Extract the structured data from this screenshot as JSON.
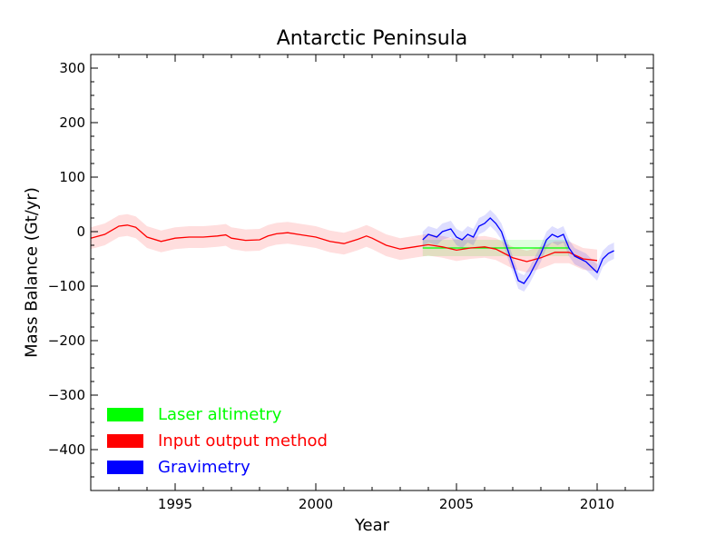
{
  "chart_data": {
    "type": "line",
    "title": "Antarctic Peninsula",
    "xlabel": "Year",
    "ylabel": "Mass Balance (Gt/yr)",
    "xlim": [
      1992,
      2012
    ],
    "ylim": [
      -475,
      325
    ],
    "xticks": [
      1995,
      2000,
      2005,
      2010
    ],
    "yticks": [
      300,
      200,
      100,
      0,
      -100,
      -200,
      -300,
      -400
    ],
    "grid": false,
    "legend_position": "lower-left",
    "series": [
      {
        "name": "Laser altimetry",
        "color": "#00ff00",
        "band_color": "#00ff00",
        "x": [
          2003.8,
          2009.0
        ],
        "y": [
          -30,
          -30
        ],
        "lower": [
          -45,
          -45
        ],
        "upper": [
          -15,
          -15
        ]
      },
      {
        "name": "Input output method",
        "color": "#ff0000",
        "band_color": "#ff0000",
        "x": [
          1992.0,
          1992.5,
          1993.0,
          1993.3,
          1993.6,
          1994.0,
          1994.5,
          1995.0,
          1995.5,
          1996.0,
          1996.5,
          1996.8,
          1997.0,
          1997.5,
          1998.0,
          1998.3,
          1998.6,
          1999.0,
          1999.5,
          2000.0,
          2000.5,
          2001.0,
          2001.5,
          2001.8,
          2002.0,
          2002.5,
          2003.0,
          2003.5,
          2004.0,
          2004.5,
          2005.0,
          2005.5,
          2006.0,
          2006.4,
          2006.7,
          2007.0,
          2007.5,
          2008.0,
          2008.5,
          2009.0,
          2009.5,
          2010.0
        ],
        "y": [
          -12,
          -5,
          10,
          12,
          8,
          -10,
          -18,
          -12,
          -10,
          -10,
          -8,
          -6,
          -12,
          -16,
          -15,
          -8,
          -4,
          -2,
          -6,
          -10,
          -18,
          -22,
          -14,
          -8,
          -12,
          -25,
          -32,
          -28,
          -24,
          -28,
          -34,
          -30,
          -28,
          -32,
          -40,
          -48,
          -55,
          -48,
          -38,
          -38,
          -50,
          -53
        ],
        "lower": [
          -32,
          -25,
          -10,
          -8,
          -12,
          -30,
          -38,
          -32,
          -30,
          -30,
          -28,
          -26,
          -32,
          -36,
          -35,
          -28,
          -24,
          -22,
          -26,
          -30,
          -38,
          -42,
          -34,
          -28,
          -32,
          -45,
          -52,
          -48,
          -44,
          -48,
          -54,
          -50,
          -48,
          -52,
          -60,
          -68,
          -75,
          -68,
          -58,
          -58,
          -70,
          -73
        ],
        "upper": [
          8,
          15,
          30,
          32,
          28,
          10,
          2,
          8,
          10,
          10,
          12,
          14,
          8,
          4,
          5,
          12,
          16,
          18,
          14,
          10,
          2,
          -2,
          6,
          12,
          8,
          -5,
          -12,
          -8,
          -4,
          -8,
          -14,
          -10,
          -8,
          -12,
          -20,
          -28,
          -35,
          -28,
          -18,
          -18,
          -30,
          -33
        ]
      },
      {
        "name": "Gravimetry",
        "color": "#0000ff",
        "band_color": "#0000ff",
        "x": [
          2003.8,
          2004.0,
          2004.3,
          2004.5,
          2004.8,
          2005.0,
          2005.2,
          2005.4,
          2005.6,
          2005.8,
          2006.0,
          2006.2,
          2006.4,
          2006.6,
          2006.8,
          2007.0,
          2007.2,
          2007.4,
          2007.6,
          2007.8,
          2008.0,
          2008.2,
          2008.4,
          2008.6,
          2008.8,
          2009.0,
          2009.2,
          2009.4,
          2009.6,
          2009.8,
          2010.0,
          2010.2,
          2010.4,
          2010.6
        ],
        "y": [
          -15,
          -5,
          -10,
          0,
          5,
          -10,
          -15,
          -5,
          -10,
          10,
          15,
          25,
          15,
          0,
          -30,
          -60,
          -90,
          -95,
          -80,
          -60,
          -40,
          -15,
          -5,
          -10,
          -5,
          -30,
          -45,
          -50,
          -55,
          -65,
          -75,
          -50,
          -40,
          -35
        ],
        "lower": [
          -30,
          -20,
          -25,
          -15,
          -10,
          -25,
          -30,
          -20,
          -25,
          -5,
          0,
          10,
          0,
          -15,
          -45,
          -75,
          -105,
          -110,
          -95,
          -75,
          -55,
          -30,
          -20,
          -25,
          -20,
          -45,
          -60,
          -65,
          -70,
          -80,
          -90,
          -65,
          -55,
          -50
        ],
        "upper": [
          0,
          10,
          5,
          15,
          20,
          5,
          0,
          10,
          5,
          25,
          30,
          40,
          30,
          15,
          -15,
          -45,
          -75,
          -80,
          -65,
          -45,
          -25,
          0,
          10,
          5,
          10,
          -15,
          -30,
          -35,
          -40,
          -50,
          -60,
          -35,
          -25,
          -20
        ]
      }
    ]
  }
}
